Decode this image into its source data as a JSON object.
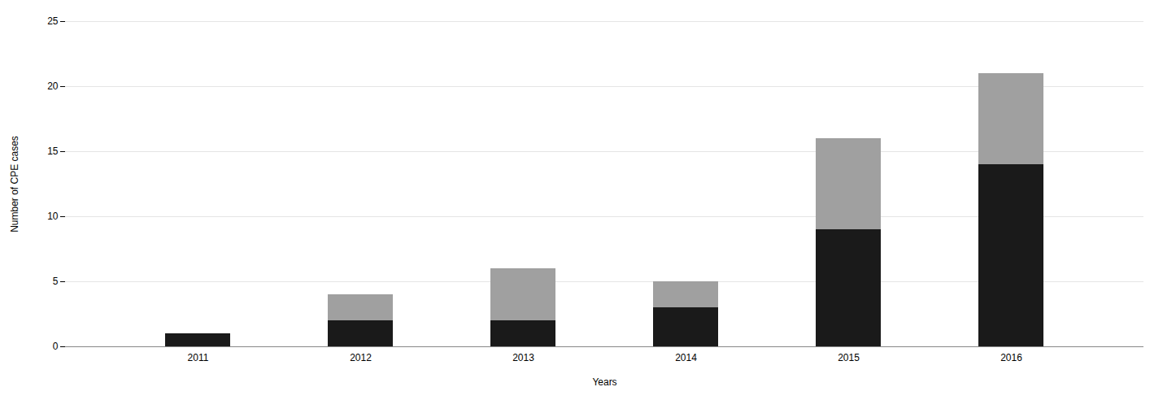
{
  "chart_data": {
    "type": "bar",
    "xlabel": "Years",
    "ylabel": "Number of CPE cases",
    "categories": [
      "2011",
      "2012",
      "2013",
      "2014",
      "2015",
      "2016"
    ],
    "series": [
      {
        "color": "#1a1a1a",
        "values": [
          1,
          2,
          2,
          3,
          9,
          14
        ]
      },
      {
        "color": "#a0a0a0",
        "values": [
          0,
          2,
          4,
          2,
          7,
          7
        ]
      }
    ],
    "stacked": true,
    "ylim": [
      0,
      25
    ],
    "yticks": [
      0,
      5,
      10,
      15,
      20,
      25
    ],
    "grid": true
  }
}
